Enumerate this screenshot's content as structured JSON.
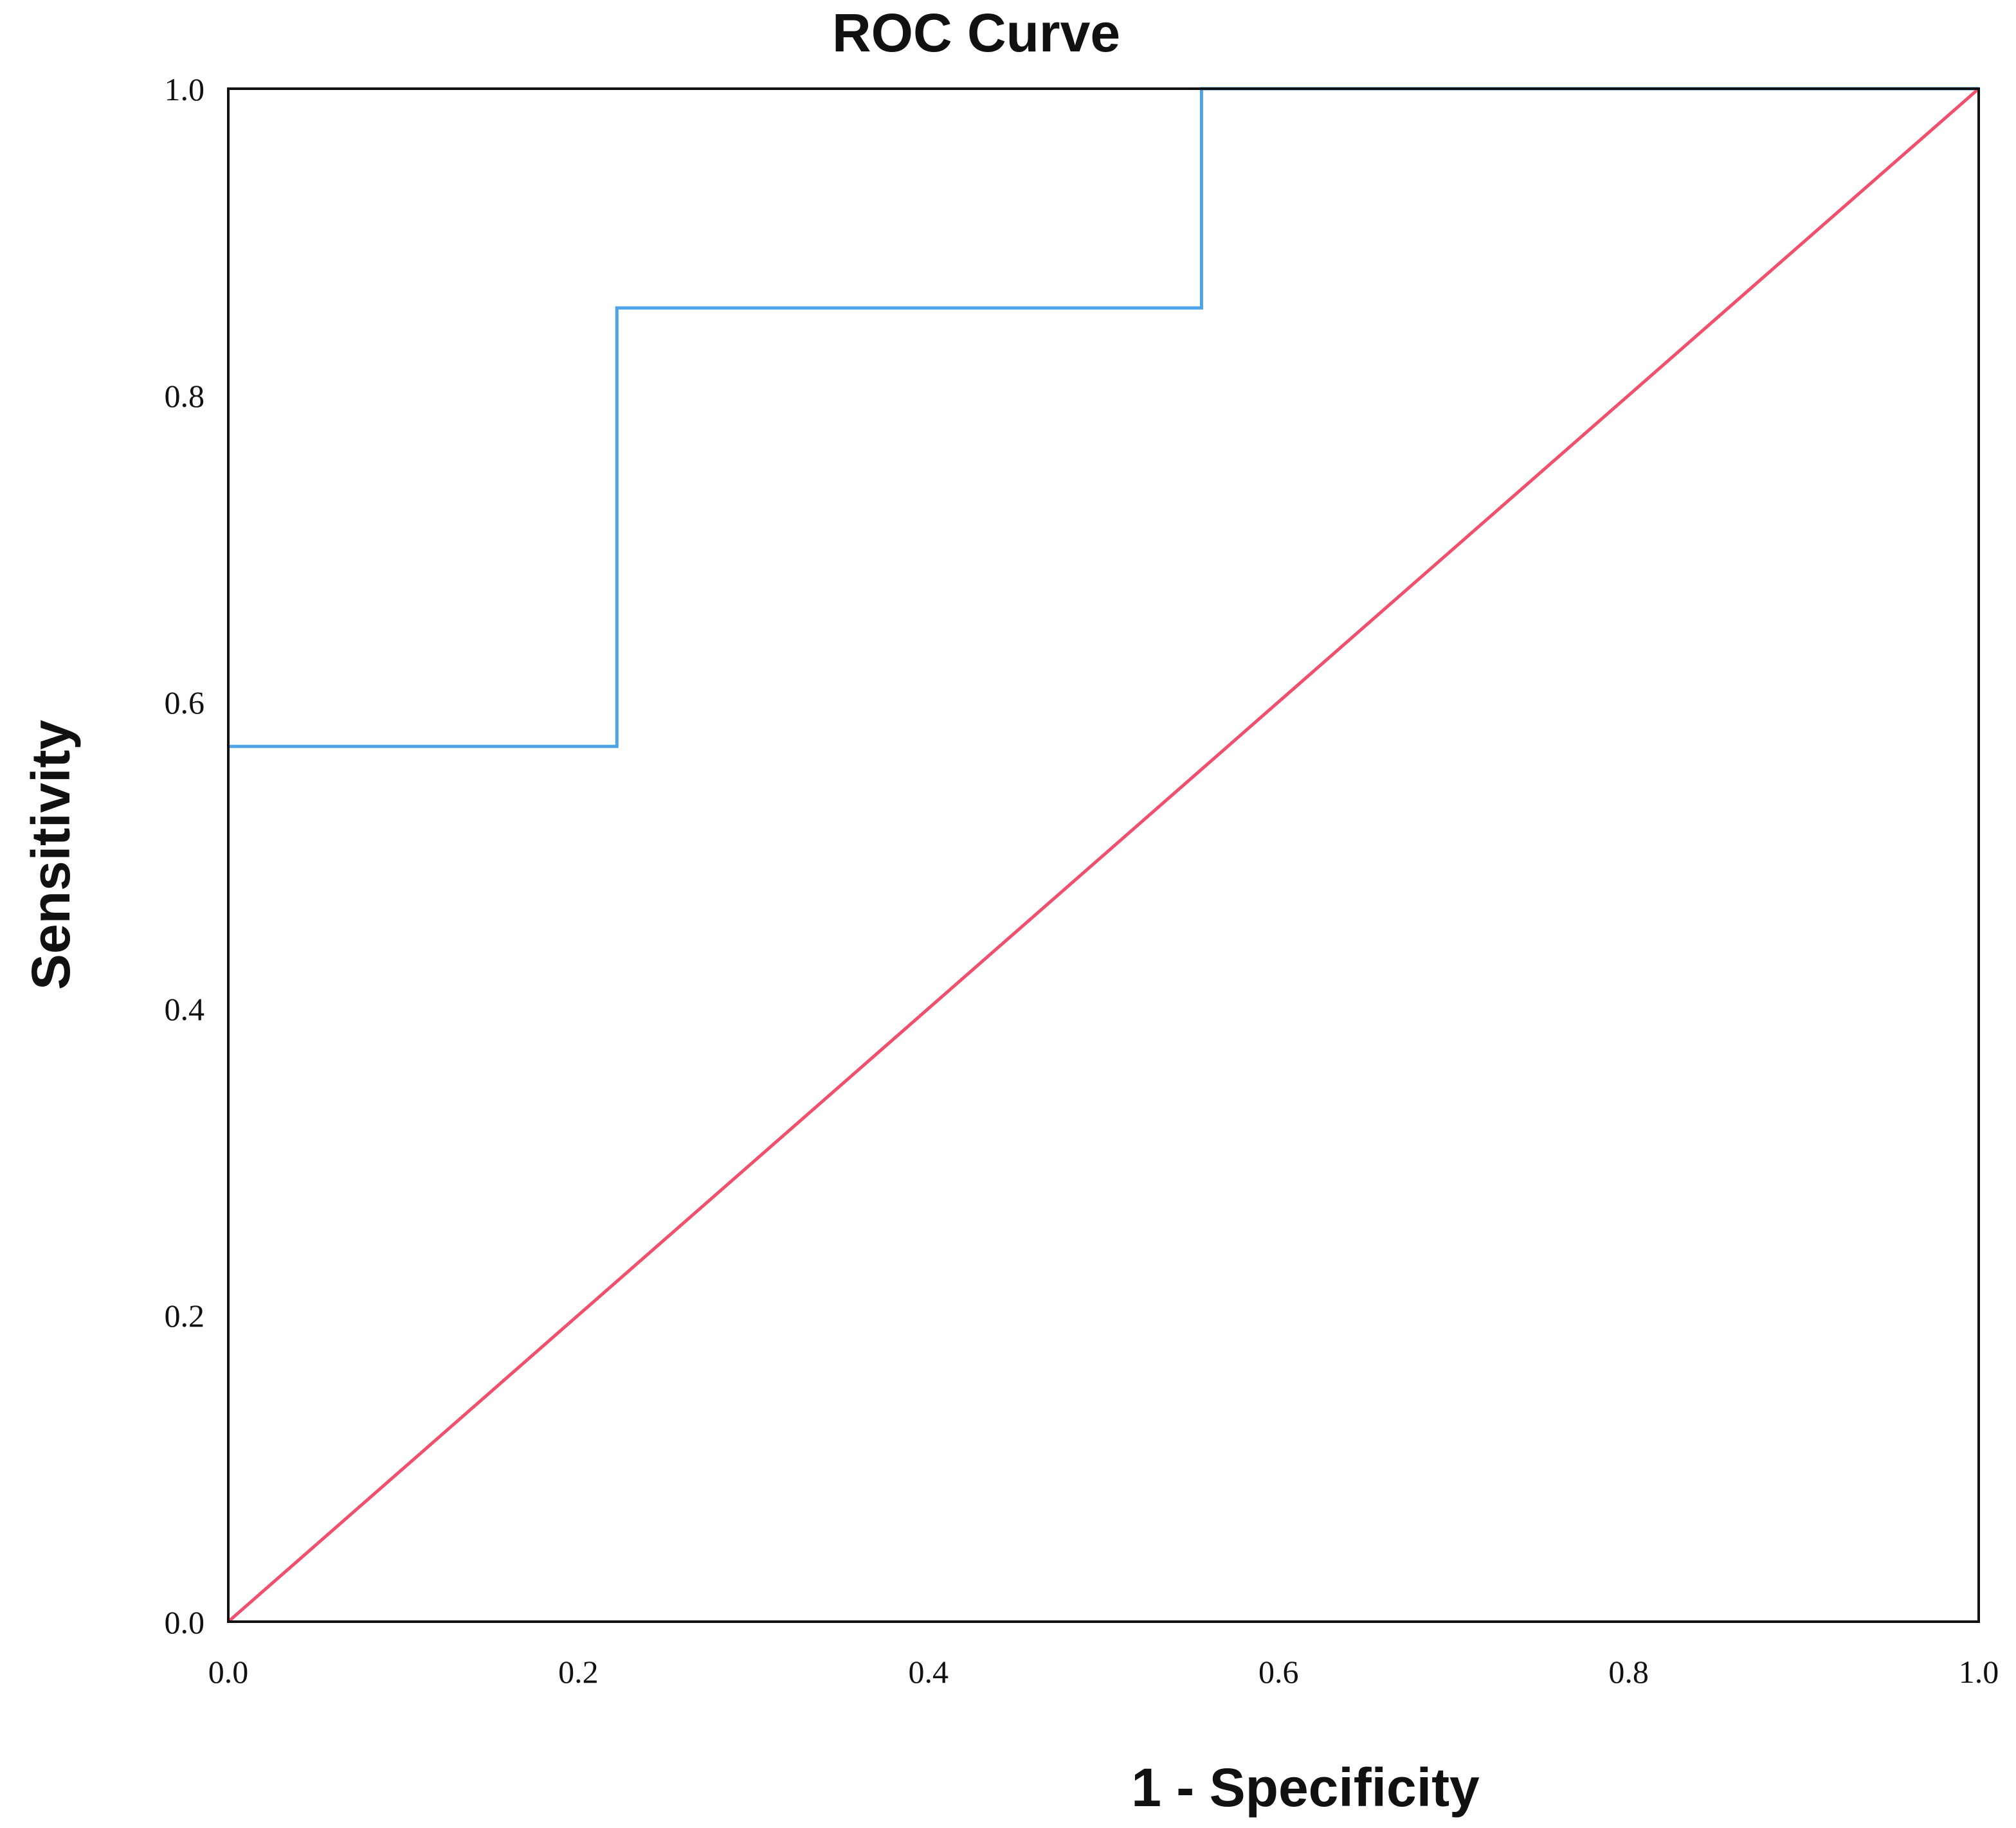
{
  "chart_data": {
    "type": "line",
    "title": "ROC Curve",
    "xlabel": "1 - Specificity",
    "ylabel": "Sensitivity",
    "xlim": [
      0,
      1
    ],
    "ylim": [
      0,
      1
    ],
    "xticks": [
      "0.0",
      "0.2",
      "0.4",
      "0.6",
      "0.8",
      "1.0"
    ],
    "yticks": [
      "0.0",
      "0.2",
      "0.4",
      "0.6",
      "0.8",
      "1.0"
    ],
    "grid": false,
    "legend": "none",
    "series": [
      {
        "color": "#4da3e8",
        "step": true,
        "x": [
          0.0,
          0.222,
          0.222,
          0.556,
          0.556,
          1.0
        ],
        "y": [
          0.571,
          0.571,
          0.857,
          0.857,
          1.0,
          1.0
        ]
      },
      {
        "color": "#f0506e",
        "step": false,
        "x": [
          0.0,
          1.0
        ],
        "y": [
          0.0,
          1.0
        ]
      }
    ]
  }
}
